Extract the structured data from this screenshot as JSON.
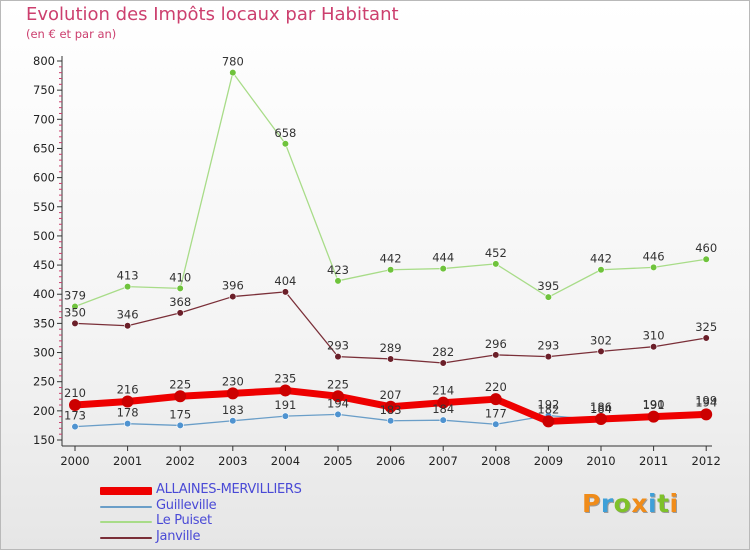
{
  "title": "Evolution des Impôts locaux par Habitant",
  "subtitle": "(en € et par an)",
  "logo": {
    "letters": [
      "P",
      "r",
      "o",
      "x",
      "i",
      "t",
      "i"
    ],
    "colors": [
      "#f08c1a",
      "#3fa0d8",
      "#7fc12a",
      "#f08c1a",
      "#3fa0d8",
      "#7fc12a",
      "#f08c1a"
    ]
  },
  "chart_data": {
    "type": "line",
    "title": "Evolution des Impôts locaux par Habitant",
    "subtitle": "(en € et par an)",
    "x": [
      "2000",
      "2001",
      "2002",
      "2003",
      "2004",
      "2005",
      "2006",
      "2007",
      "2008",
      "2009",
      "2010",
      "2011",
      "2012"
    ],
    "yticks": [
      150,
      200,
      250,
      300,
      350,
      400,
      450,
      500,
      550,
      600,
      650,
      700,
      750,
      800
    ],
    "ylim": [
      150,
      800
    ],
    "grid": false,
    "legend_position": "bottom-left",
    "series": [
      {
        "name": "ALLAINES-MERVILLIERS",
        "color": "#ee0000",
        "marker": "#cc0000",
        "width": 7,
        "values": [
          210,
          216,
          225,
          230,
          235,
          225,
          207,
          214,
          220,
          182,
          186,
          190,
          194
        ]
      },
      {
        "name": "Guilleville",
        "color": "#6a9ec8",
        "marker": "#4f93d0",
        "width": 1.3,
        "values": [
          173,
          178,
          175,
          183,
          191,
          194,
          183,
          184,
          177,
          192,
          184,
          191,
          199
        ]
      },
      {
        "name": "Le Puiset",
        "color": "#a8dc88",
        "marker": "#6fc33c",
        "width": 1.3,
        "values": [
          379,
          413,
          410,
          780,
          658,
          423,
          442,
          444,
          452,
          395,
          442,
          446,
          460
        ]
      },
      {
        "name": "Janville",
        "color": "#7a2f38",
        "marker": "#6b1f29",
        "width": 1.3,
        "values": [
          350,
          346,
          368,
          396,
          404,
          293,
          289,
          282,
          296,
          293,
          302,
          310,
          325
        ]
      }
    ]
  }
}
